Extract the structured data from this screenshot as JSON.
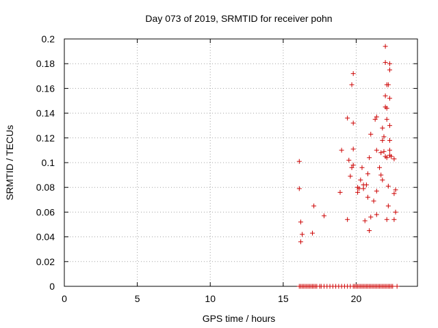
{
  "chart_data": {
    "type": "scatter",
    "title": "Day 073 of 2019, SRMTID for receiver pohn",
    "xlabel": "GPS time / hours",
    "ylabel": "SRMTID / TECUs",
    "xlim": [
      0,
      24.2
    ],
    "ylim": [
      0,
      0.2
    ],
    "x_ticks": [
      0,
      5,
      10,
      15,
      20
    ],
    "x_tick_labels": [
      "0",
      "5",
      "10",
      "15",
      "20"
    ],
    "y_ticks": [
      0,
      0.02,
      0.04,
      0.06,
      0.08,
      0.1,
      0.12,
      0.14,
      0.16,
      0.18,
      0.2
    ],
    "y_tick_labels": [
      "0",
      "0.02",
      "0.04",
      "0.06",
      "0.08",
      "0.1",
      "0.12",
      "0.14",
      "0.16",
      "0.18",
      "0.2"
    ],
    "grid": true,
    "marker": "+",
    "marker_color": "#cc0000",
    "series": [
      {
        "name": "SRMTID",
        "points": [
          [
            16.1,
            0.101
          ],
          [
            16.1,
            0.079
          ],
          [
            16.2,
            0.052
          ],
          [
            16.2,
            0.036
          ],
          [
            16.3,
            0.042
          ],
          [
            17.1,
            0.065
          ],
          [
            17.0,
            0.043
          ],
          [
            17.8,
            0.057
          ],
          [
            18.9,
            0.076
          ],
          [
            19.0,
            0.11
          ],
          [
            19.4,
            0.136
          ],
          [
            19.5,
            0.102
          ],
          [
            19.4,
            0.054
          ],
          [
            19.6,
            0.089
          ],
          [
            19.7,
            0.096
          ],
          [
            19.8,
            0.098
          ],
          [
            19.8,
            0.111
          ],
          [
            19.7,
            0.163
          ],
          [
            19.8,
            0.172
          ],
          [
            19.8,
            0.132
          ],
          [
            20.1,
            0.08
          ],
          [
            20.1,
            0.076
          ],
          [
            20.2,
            0.079
          ],
          [
            20.3,
            0.086
          ],
          [
            20.4,
            0.096
          ],
          [
            20.5,
            0.079
          ],
          [
            20.6,
            0.053
          ],
          [
            20.5,
            0.082
          ],
          [
            20.7,
            0.082
          ],
          [
            20.8,
            0.091
          ],
          [
            20.8,
            0.072
          ],
          [
            20.9,
            0.104
          ],
          [
            20.9,
            0.045
          ],
          [
            21.0,
            0.056
          ],
          [
            21.0,
            0.123
          ],
          [
            21.2,
            0.069
          ],
          [
            21.3,
            0.135
          ],
          [
            21.4,
            0.137
          ],
          [
            21.4,
            0.11
          ],
          [
            21.4,
            0.058
          ],
          [
            21.4,
            0.077
          ],
          [
            21.6,
            0.096
          ],
          [
            21.7,
            0.09
          ],
          [
            21.7,
            0.108
          ],
          [
            21.8,
            0.086
          ],
          [
            21.8,
            0.118
          ],
          [
            21.8,
            0.128
          ],
          [
            21.9,
            0.121
          ],
          [
            21.9,
            0.109
          ],
          [
            22.0,
            0.145
          ],
          [
            22.0,
            0.154
          ],
          [
            22.0,
            0.181
          ],
          [
            22.0,
            0.194
          ],
          [
            22.1,
            0.163
          ],
          [
            22.1,
            0.144
          ],
          [
            22.1,
            0.135
          ],
          [
            22.0,
            0.105
          ],
          [
            22.1,
            0.104
          ],
          [
            22.1,
            0.054
          ],
          [
            22.2,
            0.163
          ],
          [
            22.2,
            0.081
          ],
          [
            22.2,
            0.065
          ],
          [
            22.3,
            0.18
          ],
          [
            22.3,
            0.175
          ],
          [
            22.3,
            0.152
          ],
          [
            22.3,
            0.13
          ],
          [
            22.3,
            0.118
          ],
          [
            22.3,
            0.11
          ],
          [
            22.3,
            0.106
          ],
          [
            22.4,
            0.105
          ],
          [
            22.6,
            0.103
          ],
          [
            22.6,
            0.075
          ],
          [
            22.7,
            0.078
          ],
          [
            22.6,
            0.054
          ],
          [
            22.7,
            0.06
          ],
          [
            16.1,
            0
          ],
          [
            16.2,
            0
          ],
          [
            16.3,
            0
          ],
          [
            16.4,
            0
          ],
          [
            16.5,
            0
          ],
          [
            16.6,
            0
          ],
          [
            16.7,
            0
          ],
          [
            16.8,
            0
          ],
          [
            16.9,
            0
          ],
          [
            17.0,
            0
          ],
          [
            17.1,
            0
          ],
          [
            17.2,
            0
          ],
          [
            17.3,
            0
          ],
          [
            17.5,
            0
          ],
          [
            17.6,
            0
          ],
          [
            17.8,
            0
          ],
          [
            18.0,
            0
          ],
          [
            18.2,
            0
          ],
          [
            18.4,
            0
          ],
          [
            18.6,
            0
          ],
          [
            18.8,
            0
          ],
          [
            19.0,
            0
          ],
          [
            19.2,
            0
          ],
          [
            19.4,
            0
          ],
          [
            19.6,
            0
          ],
          [
            19.8,
            0
          ],
          [
            19.9,
            0
          ],
          [
            20.0,
            0
          ],
          [
            20.1,
            0
          ],
          [
            20.2,
            0
          ],
          [
            20.3,
            0
          ],
          [
            20.4,
            0
          ],
          [
            20.5,
            0
          ],
          [
            20.6,
            0
          ],
          [
            20.7,
            0
          ],
          [
            20.8,
            0
          ],
          [
            20.9,
            0
          ],
          [
            21.0,
            0
          ],
          [
            21.1,
            0
          ],
          [
            21.2,
            0
          ],
          [
            21.3,
            0
          ],
          [
            21.4,
            0
          ],
          [
            21.5,
            0
          ],
          [
            21.6,
            0
          ],
          [
            21.7,
            0
          ],
          [
            21.8,
            0
          ],
          [
            21.9,
            0
          ],
          [
            22.0,
            0
          ],
          [
            22.1,
            0
          ],
          [
            22.2,
            0
          ],
          [
            22.3,
            0
          ],
          [
            22.4,
            0
          ],
          [
            22.5,
            0
          ],
          [
            22.8,
            0
          ]
        ]
      }
    ]
  }
}
